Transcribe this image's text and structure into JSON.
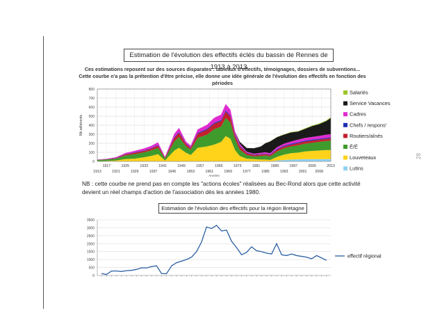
{
  "page_number": "28",
  "chart1": {
    "title": "Estimation de l'évolution des effectifs éclés du bassin de Rennes de 1913 à 2013",
    "subtitle_line1": "Ces estimations reposent sur des sources disparates : tableaux d'effectifs, témoignages, dossiers de subventions...",
    "subtitle_line2": "Cette courbe n'a pas la prétention d'être précise, elle donne une idée générale de l'évolution des effectifs en fonction des périodes",
    "ylabel": "Nb adhérents",
    "xlabel": "Années"
  },
  "note_line1": "NB : cette courbe ne prend pas en compte les \"actions écoles\" réalisées au Bec-Rond alors que cette activité",
  "note_line2": "devient un réel champs d'action de l'association dès les années 1980.",
  "chart2": {
    "title": "Estimation de l'évolution des effectifs pour la région Bretagne",
    "legend": "effectif régional"
  },
  "chart_data": [
    {
      "type": "area",
      "stacked": true,
      "title": "Estimation de l'évolution des effectifs éclés du bassin de Rennes de 1913 à 2013",
      "ylabel": "Nb adhérents",
      "xlabel": "Années",
      "ylim": [
        0,
        800
      ],
      "yticks": [
        0,
        100,
        200,
        300,
        400,
        500,
        600,
        700,
        800
      ],
      "xticks_top": [
        "1917",
        "1925",
        "1933",
        "1941",
        "1949",
        "1957",
        "1965",
        "1973",
        "1981",
        "1989",
        "1997",
        "2005",
        "2013"
      ],
      "xticks_bottom": [
        "1913",
        "1921",
        "1929",
        "1937",
        "1945",
        "1953",
        "1961",
        "1969",
        "1977",
        "1985",
        "1993",
        "2001",
        "2008"
      ],
      "grid": true,
      "legend_position": "right",
      "x": [
        1913,
        1917,
        1921,
        1925,
        1929,
        1933,
        1936,
        1939,
        1942,
        1946,
        1948,
        1951,
        1953,
        1956,
        1960,
        1963,
        1966,
        1968,
        1970,
        1972,
        1974,
        1977,
        1980,
        1983,
        1985,
        1987,
        1990,
        1993,
        1996,
        1999,
        2002,
        2005,
        2008,
        2011,
        2013
      ],
      "series": [
        {
          "name": "Lutins",
          "color": "#8fd3f0",
          "values": [
            0,
            0,
            0,
            0,
            0,
            0,
            0,
            0,
            0,
            0,
            0,
            0,
            0,
            0,
            0,
            0,
            0,
            0,
            0,
            0,
            0,
            0,
            0,
            0,
            0,
            0,
            10,
            15,
            20,
            22,
            25,
            25,
            25,
            25,
            25
          ]
        },
        {
          "name": "Louveteaux",
          "color": "#ffd319",
          "values": [
            3,
            5,
            10,
            25,
            30,
            45,
            60,
            80,
            10,
            120,
            150,
            95,
            70,
            150,
            165,
            185,
            215,
            280,
            250,
            125,
            60,
            30,
            25,
            20,
            20,
            15,
            40,
            60,
            70,
            75,
            85,
            90,
            95,
            100,
            100
          ]
        },
        {
          "name": "É/É",
          "color": "#3f9b2c",
          "values": [
            12,
            15,
            20,
            40,
            50,
            55,
            60,
            70,
            20,
            100,
            120,
            70,
            60,
            110,
            130,
            170,
            170,
            200,
            180,
            120,
            70,
            40,
            30,
            40,
            45,
            40,
            60,
            70,
            75,
            80,
            85,
            90,
            95,
            100,
            105
          ]
        },
        {
          "name": "Routiers/aînés",
          "color": "#c3212d",
          "values": [
            2,
            3,
            6,
            12,
            15,
            16,
            20,
            25,
            10,
            40,
            45,
            25,
            20,
            45,
            55,
            60,
            60,
            70,
            65,
            40,
            35,
            20,
            15,
            15,
            15,
            15,
            20,
            20,
            20,
            25,
            25,
            25,
            25,
            25,
            25
          ]
        },
        {
          "name": "Chefs / respons'",
          "color": "#1d2fb3",
          "values": [
            1,
            2,
            2,
            3,
            5,
            5,
            5,
            6,
            3,
            8,
            9,
            6,
            5,
            9,
            10,
            11,
            12,
            13,
            12,
            10,
            9,
            6,
            5,
            5,
            5,
            5,
            8,
            9,
            10,
            10,
            10,
            10,
            10,
            10,
            10
          ]
        },
        {
          "name": "Cadres",
          "color": "#e02ad0",
          "values": [
            2,
            4,
            8,
            12,
            16,
            22,
            25,
            30,
            8,
            38,
            46,
            22,
            20,
            40,
            45,
            55,
            60,
            72,
            65,
            35,
            22,
            12,
            10,
            14,
            16,
            15,
            20,
            22,
            25,
            28,
            30,
            30,
            32,
            35,
            35
          ]
        },
        {
          "name": "Service Vacances",
          "color": "#1a1a1a",
          "values": [
            0,
            0,
            0,
            0,
            0,
            0,
            0,
            0,
            0,
            0,
            0,
            0,
            0,
            0,
            0,
            0,
            0,
            0,
            0,
            0,
            20,
            40,
            60,
            70,
            100,
            130,
            110,
            100,
            100,
            90,
            100,
            120,
            130,
            150,
            180
          ]
        },
        {
          "name": "Salariés",
          "color": "#9bc628",
          "values": [
            0,
            0,
            0,
            0,
            0,
            0,
            0,
            0,
            0,
            0,
            0,
            0,
            0,
            0,
            0,
            0,
            0,
            0,
            0,
            0,
            0,
            0,
            0,
            0,
            0,
            2,
            3,
            4,
            5,
            5,
            6,
            6,
            7,
            7,
            8
          ]
        }
      ]
    },
    {
      "type": "line",
      "title": "Estimation de l'évolution des effectifs pour la région Bretagne",
      "ylim": [
        0,
        3500
      ],
      "yticks": [
        0,
        500,
        1000,
        1500,
        2000,
        2500,
        3000,
        3500
      ],
      "grid": true,
      "legend_position": "right",
      "series": [
        {
          "name": "effectif régional",
          "color": "#2b5fa3",
          "values": [
            120,
            60,
            280,
            280,
            250,
            300,
            320,
            380,
            480,
            470,
            560,
            610,
            120,
            110,
            600,
            800,
            900,
            1000,
            1150,
            1500,
            2100,
            3050,
            2950,
            3150,
            2800,
            2850,
            2150,
            1750,
            1300,
            1450,
            1800,
            1550,
            1500,
            1400,
            1350,
            2000,
            1300,
            1250,
            1350,
            1250,
            1200,
            1150,
            1050,
            1250,
            1100,
            950
          ]
        }
      ]
    }
  ]
}
